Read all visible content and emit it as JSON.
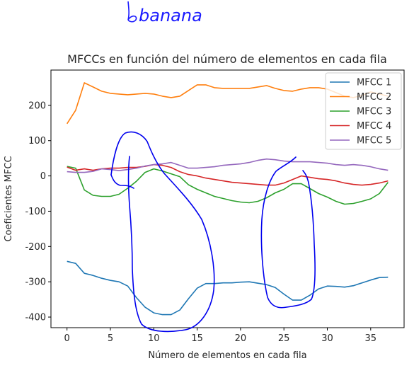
{
  "handwritten_note": "banana",
  "chart_data": {
    "type": "line",
    "title": "MFCCs en función del número de elementos en cada fila",
    "xlabel": "Número de elementos en cada fila",
    "ylabel": "Coeficientes MFCC",
    "xlim": [
      -1.85,
      38.85
    ],
    "ylim": [
      -430,
      300
    ],
    "xticks": [
      0,
      5,
      10,
      15,
      20,
      25,
      30,
      35
    ],
    "yticks": [
      -400,
      -300,
      -200,
      -100,
      0,
      100,
      200
    ],
    "grid": false,
    "legend_position": "top-right",
    "x": [
      0,
      1,
      2,
      3,
      4,
      5,
      6,
      7,
      8,
      9,
      10,
      11,
      12,
      13,
      14,
      15,
      16,
      17,
      18,
      19,
      20,
      21,
      22,
      23,
      24,
      25,
      26,
      27,
      28,
      29,
      30,
      31,
      32,
      33,
      34,
      35,
      36,
      37
    ],
    "series": [
      {
        "name": "MFCC 1",
        "color": "#1f77b4",
        "values": [
          -242,
          -248,
          -276,
          -282,
          -290,
          -296,
          -300,
          -312,
          -345,
          -372,
          -388,
          -393,
          -393,
          -380,
          -348,
          -318,
          -305,
          -305,
          -303,
          -303,
          -301,
          -300,
          -304,
          -308,
          -316,
          -335,
          -352,
          -352,
          -338,
          -320,
          -312,
          -313,
          -315,
          -311,
          -303,
          -295,
          -288,
          -287
        ]
      },
      {
        "name": "MFCC 2",
        "color": "#ff7f0e",
        "values": [
          148,
          186,
          264,
          252,
          240,
          234,
          232,
          230,
          232,
          234,
          232,
          226,
          222,
          226,
          242,
          258,
          258,
          250,
          248,
          248,
          248,
          248,
          252,
          256,
          248,
          242,
          240,
          246,
          250,
          250,
          246,
          236,
          226,
          222,
          228,
          238,
          232,
          226
        ]
      },
      {
        "name": "MFCC 3",
        "color": "#2ca02c",
        "values": [
          27,
          22,
          -40,
          -55,
          -58,
          -58,
          -52,
          -35,
          -15,
          10,
          20,
          14,
          6,
          -2,
          -25,
          -38,
          -48,
          -58,
          -64,
          -70,
          -74,
          -76,
          -72,
          -62,
          -48,
          -38,
          -22,
          -22,
          -36,
          -50,
          -60,
          -72,
          -80,
          -78,
          -72,
          -65,
          -50,
          -18
        ]
      },
      {
        "name": "MFCC 4",
        "color": "#d62728",
        "values": [
          25,
          16,
          20,
          16,
          20,
          22,
          22,
          24,
          24,
          27,
          32,
          30,
          24,
          12,
          4,
          0,
          -6,
          -10,
          -14,
          -18,
          -20,
          -22,
          -24,
          -26,
          -26,
          -20,
          -10,
          0,
          -4,
          -8,
          -10,
          -14,
          -20,
          -24,
          -26,
          -24,
          -20,
          -14
        ]
      },
      {
        "name": "MFCC 5",
        "color": "#9467bd",
        "values": [
          12,
          10,
          10,
          13,
          20,
          18,
          15,
          18,
          22,
          28,
          32,
          34,
          38,
          30,
          22,
          22,
          24,
          26,
          30,
          32,
          34,
          38,
          44,
          48,
          46,
          42,
          40,
          40,
          40,
          38,
          36,
          32,
          30,
          32,
          30,
          26,
          20,
          16
        ]
      }
    ]
  }
}
